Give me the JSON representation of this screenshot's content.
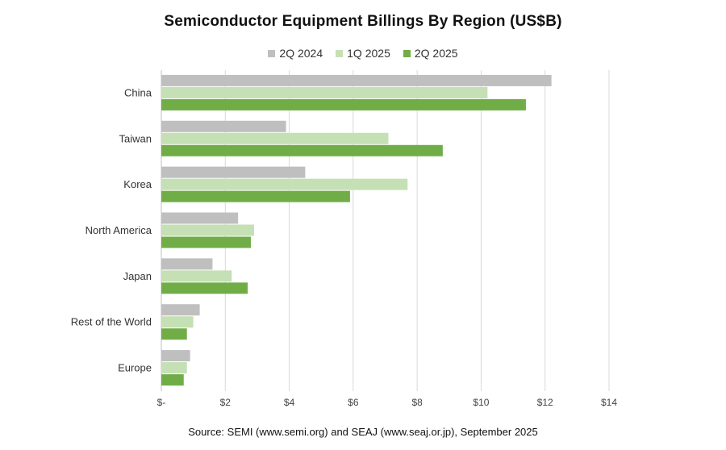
{
  "chart_data": {
    "type": "bar",
    "orientation": "horizontal",
    "title": "Semiconductor Equipment Billings By Region (US$B)",
    "categories": [
      "China",
      "Taiwan",
      "Korea",
      "North America",
      "Japan",
      "Rest of the World",
      "Europe"
    ],
    "series": [
      {
        "name": "2Q 2024",
        "color": "#bfbfbf",
        "values": [
          12.2,
          3.9,
          4.5,
          2.4,
          1.6,
          1.2,
          0.9
        ]
      },
      {
        "name": "1Q 2025",
        "color": "#c5e0b4",
        "values": [
          10.2,
          7.1,
          7.7,
          2.9,
          2.2,
          1.0,
          0.8
        ]
      },
      {
        "name": "2Q 2025",
        "color": "#70ad47",
        "values": [
          11.4,
          8.8,
          5.9,
          2.8,
          2.7,
          0.8,
          0.7
        ]
      }
    ],
    "xlim": [
      0,
      14
    ],
    "xticks": [
      "$-",
      "$2",
      "$4",
      "$6",
      "$8",
      "$10",
      "$12",
      "$14"
    ],
    "grid": true,
    "legend": "top-center"
  },
  "source": "Source: SEMI (www.semi.org) and SEAJ (www.seaj.or.jp), September 2025"
}
